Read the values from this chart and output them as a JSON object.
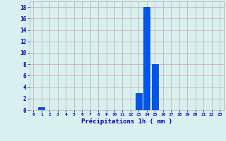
{
  "hours": [
    0,
    1,
    2,
    3,
    4,
    5,
    6,
    7,
    8,
    9,
    10,
    11,
    12,
    13,
    14,
    15,
    16,
    17,
    18,
    19,
    20,
    21,
    22,
    23
  ],
  "values": [
    0,
    0.5,
    0,
    0,
    0,
    0,
    0,
    0,
    0,
    0,
    0,
    0,
    0,
    3.0,
    18.0,
    8.0,
    0,
    0,
    0,
    0,
    0,
    0,
    0,
    0
  ],
  "bar_color": "#0055ee",
  "bar_edge_color": "#0033aa",
  "background_color": "#d8f0f0",
  "grid_color": "#c8a8a8",
  "xlabel": "Précipitations 1h ( mm )",
  "xlabel_color": "#0000bb",
  "tick_color": "#0000bb",
  "ylim": [
    0,
    19
  ],
  "yticks": [
    0,
    2,
    4,
    6,
    8,
    10,
    12,
    14,
    16,
    18
  ],
  "figwidth": 3.2,
  "figheight": 2.0,
  "dpi": 100
}
